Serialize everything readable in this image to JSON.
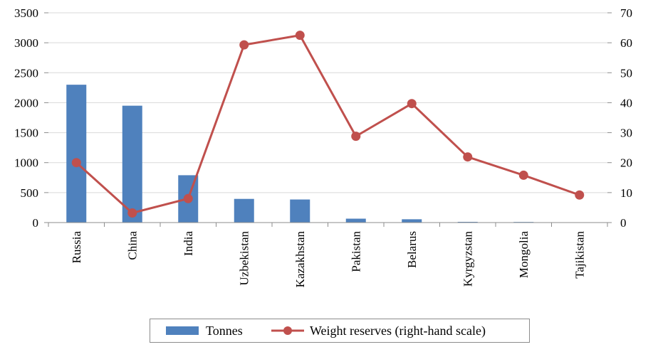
{
  "chart_data": {
    "type": "bar",
    "categories": [
      "Russia",
      "China",
      "India",
      "Uzbekistan",
      "Kazakhstan",
      "Pakistan",
      "Belarus",
      "Kyrgyzstan",
      "Mongolia",
      "Tajikistan"
    ],
    "series": [
      {
        "name": "Tonnes",
        "type": "bar",
        "axis": "left",
        "color": "#4f81bd",
        "values": [
          2300,
          1950,
          790,
          395,
          385,
          65,
          55,
          12,
          10,
          5
        ]
      },
      {
        "name": "Weight reserves (right-hand scale)",
        "type": "line",
        "axis": "right",
        "color": "#c0504d",
        "values": [
          20,
          3.2,
          8,
          59.3,
          62.5,
          28.8,
          39.7,
          21.9,
          15.8,
          9.2
        ]
      }
    ],
    "y_left": {
      "ylim": [
        0,
        3500
      ],
      "ticks": [
        0,
        500,
        1000,
        1500,
        2000,
        2500,
        3000,
        3500
      ]
    },
    "y_right": {
      "ylim": [
        0,
        70
      ],
      "ticks": [
        0,
        10,
        20,
        30,
        40,
        50,
        60,
        70
      ]
    },
    "grid": "horizontal",
    "legend_position": "bottom"
  }
}
